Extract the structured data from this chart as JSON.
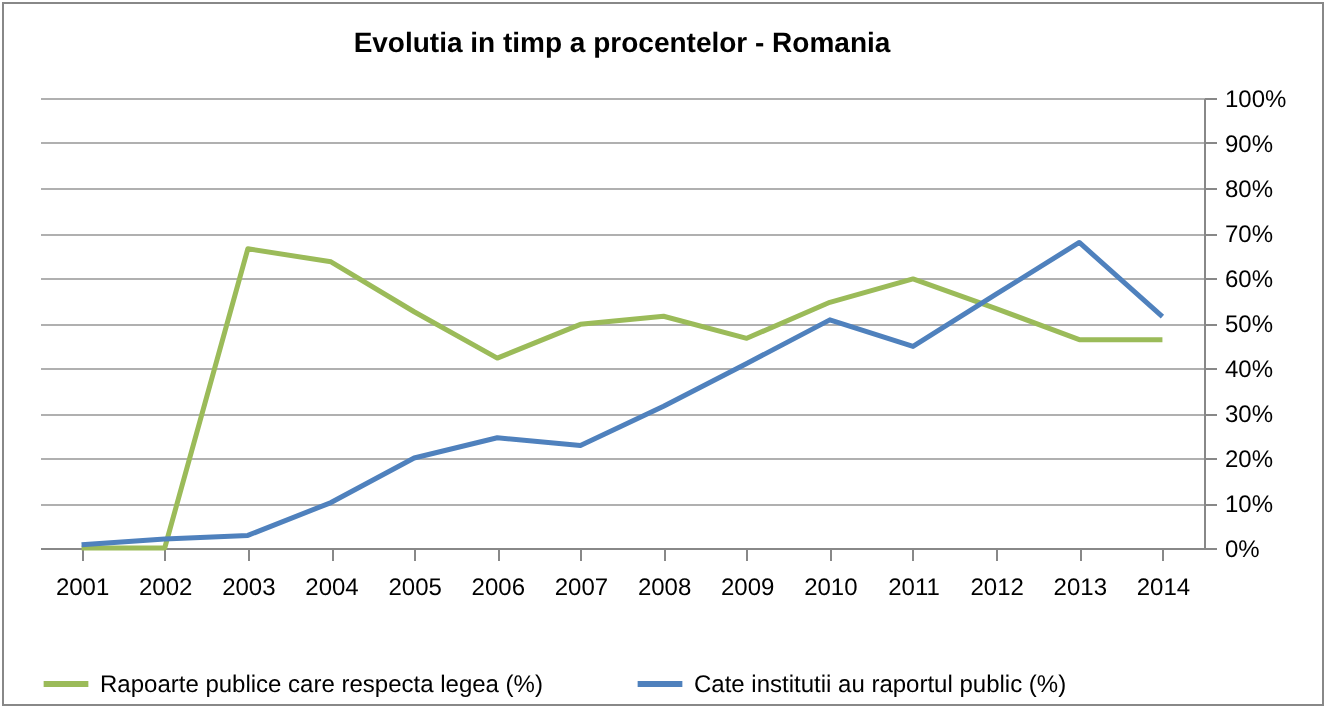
{
  "chart_data": {
    "type": "line",
    "title": "Evolutia in timp a procentelor - Romania",
    "categories": [
      "2001",
      "2002",
      "2003",
      "2004",
      "2005",
      "2006",
      "2007",
      "2008",
      "2009",
      "2010",
      "2011",
      "2012",
      "2013",
      "2014"
    ],
    "series": [
      {
        "name": "Rapoarte publice care respecta legea (%)",
        "color": "#9bbb59",
        "values": [
          0,
          0,
          66.5,
          63.6,
          52.5,
          42.2,
          49.7,
          51.5,
          46.6,
          54.6,
          59.8,
          53.2,
          46.3,
          46.3
        ]
      },
      {
        "name": "Cate institutii au raportul public (%)",
        "color": "#4f81bd",
        "values": [
          0.7,
          2,
          2.8,
          10.1,
          20,
          24.5,
          22.8,
          31.5,
          41,
          50.7,
          44.8,
          56.4,
          67.9,
          51.4
        ]
      }
    ],
    "ylim": [
      0,
      100
    ],
    "yticks": [
      {
        "value": 0,
        "label": "0%"
      },
      {
        "value": 10,
        "label": "10%"
      },
      {
        "value": 20,
        "label": "20%"
      },
      {
        "value": 30,
        "label": "30%"
      },
      {
        "value": 40,
        "label": "40%"
      },
      {
        "value": 50,
        "label": "50%"
      },
      {
        "value": 60,
        "label": "60%"
      },
      {
        "value": 70,
        "label": "70%"
      },
      {
        "value": 80,
        "label": "80%"
      },
      {
        "value": 90,
        "label": "90%"
      },
      {
        "value": 100,
        "label": "100%"
      }
    ],
    "grid": "y",
    "legend": "bottom",
    "marker": "none",
    "line_style": "solid"
  }
}
